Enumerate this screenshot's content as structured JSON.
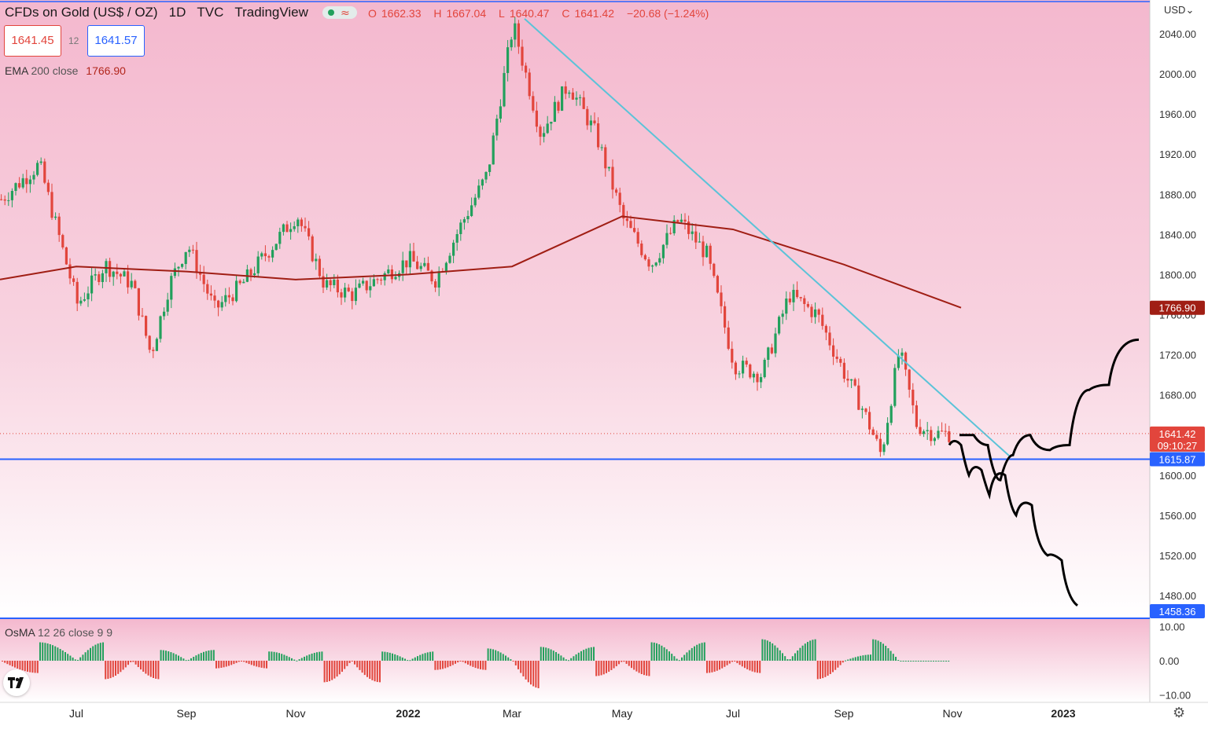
{
  "header": {
    "title": "CFDs on Gold (US$ / OZ)",
    "interval": "1D",
    "source": "TVC",
    "platform": "TradingView",
    "ohlc": {
      "open_label": "O",
      "open": "1662.33",
      "high_label": "H",
      "high": "1667.04",
      "low_label": "L",
      "low": "1640.47",
      "close_label": "C",
      "close": "1641.42",
      "change": "−20.68 (−1.24%)"
    }
  },
  "quote": {
    "sell": "1641.45",
    "spread": "12",
    "buy": "1641.57"
  },
  "indicators": {
    "ema": {
      "name": "EMA",
      "params": "200 close",
      "value": "1766.90"
    },
    "osma": {
      "name": "OsMA",
      "params": "12 26 close 9 9"
    }
  },
  "axis_currency": "USD",
  "colors": {
    "up": "#22a05c",
    "down": "#e2453c",
    "ema": "#a01e14",
    "trendline": "#5bc3d8",
    "support": "#2962ff",
    "projection": "#000000",
    "background_top": "#f4b8ce",
    "background_bottom": "#ffffff"
  },
  "badges": {
    "ema": "1766.90",
    "last_price": "1641.42",
    "countdown": "09:10:27",
    "support": "1615.87",
    "bottom_line": "1458.36"
  },
  "chart_data": [
    {
      "type": "candlestick",
      "title": "CFDs on Gold (US$ / OZ)",
      "xlabel": "",
      "ylabel": "",
      "y_ticks": [
        "2040.00",
        "2000.00",
        "1960.00",
        "1920.00",
        "1880.00",
        "1840.00",
        "1800.00",
        "1760.00",
        "1720.00",
        "1680.00",
        "1600.00",
        "1560.00",
        "1520.00",
        "1480.00"
      ],
      "x_ticks": [
        "Jul",
        "Sep",
        "Nov",
        "2022",
        "Mar",
        "May",
        "Jul",
        "Sep",
        "Nov",
        "2023"
      ],
      "ylim": [
        1455,
        2055
      ],
      "x_dates": [
        "Jun 2021",
        "Jul",
        "Aug",
        "Sep",
        "Oct",
        "Nov",
        "Dec",
        "2022",
        "Feb",
        "Mar",
        "Apr",
        "May",
        "Jun",
        "Jul",
        "Aug",
        "Sep",
        "Oct",
        "Nov",
        "Dec",
        "2023",
        "Jan 2023"
      ],
      "close_path": [
        {
          "date": "Jun 2021",
          "value": 1875
        },
        {
          "date": "Jun 2021",
          "value": 1910
        },
        {
          "date": "Jul",
          "value": 1770
        },
        {
          "date": "Jul",
          "value": 1810
        },
        {
          "date": "Aug",
          "value": 1790
        },
        {
          "date": "Aug",
          "value": 1720
        },
        {
          "date": "Aug",
          "value": 1790
        },
        {
          "date": "Sep",
          "value": 1830
        },
        {
          "date": "Sep",
          "value": 1765
        },
        {
          "date": "Oct",
          "value": 1790
        },
        {
          "date": "Nov",
          "value": 1860
        },
        {
          "date": "Nov",
          "value": 1790
        },
        {
          "date": "Dec",
          "value": 1780
        },
        {
          "date": "2022",
          "value": 1815
        },
        {
          "date": "2022",
          "value": 1795
        },
        {
          "date": "Feb",
          "value": 1850
        },
        {
          "date": "Feb",
          "value": 1900
        },
        {
          "date": "Mar",
          "value": 2050
        },
        {
          "date": "Mar",
          "value": 1940
        },
        {
          "date": "Apr",
          "value": 1990
        },
        {
          "date": "Apr",
          "value": 1940
        },
        {
          "date": "May",
          "value": 1855
        },
        {
          "date": "May",
          "value": 1810
        },
        {
          "date": "Jun",
          "value": 1855
        },
        {
          "date": "Jun",
          "value": 1820
        },
        {
          "date": "Jul",
          "value": 1710
        },
        {
          "date": "Jul",
          "value": 1700
        },
        {
          "date": "Aug",
          "value": 1780
        },
        {
          "date": "Aug",
          "value": 1760
        },
        {
          "date": "Sep",
          "value": 1700
        },
        {
          "date": "Sep",
          "value": 1665
        },
        {
          "date": "Sep",
          "value": 1620
        },
        {
          "date": "Oct",
          "value": 1725
        },
        {
          "date": "Oct",
          "value": 1650
        },
        {
          "date": "Oct",
          "value": 1641.42
        }
      ],
      "ema200": [
        {
          "date": "Jun 2021",
          "value": 1795
        },
        {
          "date": "Jul",
          "value": 1808
        },
        {
          "date": "Sep",
          "value": 1803
        },
        {
          "date": "Nov",
          "value": 1795
        },
        {
          "date": "2022",
          "value": 1800
        },
        {
          "date": "Mar",
          "value": 1808
        },
        {
          "date": "May",
          "value": 1858
        },
        {
          "date": "Jul",
          "value": 1845
        },
        {
          "date": "Sep",
          "value": 1810
        },
        {
          "date": "Nov",
          "value": 1766.9
        }
      ],
      "trendline": [
        {
          "date": "Mar",
          "value": 2055
        },
        {
          "date": "Nov",
          "value": 1618
        }
      ],
      "horizontal_lines": [
        {
          "value": 1615.87
        },
        {
          "value": 1458.36
        },
        {
          "value": 1641.42
        }
      ],
      "projection_bearish": [
        1630,
        1600,
        1605,
        1580,
        1600,
        1560,
        1570,
        1520,
        1515,
        1470
      ],
      "projection_bullish": [
        1640,
        1630,
        1595,
        1620,
        1640,
        1625,
        1630,
        1685,
        1690,
        1735
      ]
    },
    {
      "type": "bar",
      "title": "OsMA",
      "y_ticks": [
        "10.00",
        "0.00",
        "−10.00"
      ],
      "ylim": [
        -10,
        10
      ],
      "values_outline": [
        {
          "date": "Jun 2021",
          "value": -4
        },
        {
          "date": "Jul",
          "value": 6
        },
        {
          "date": "Aug",
          "value": -6
        },
        {
          "date": "Sep",
          "value": 3.5
        },
        {
          "date": "Oct",
          "value": -2.5
        },
        {
          "date": "Nov",
          "value": 3
        },
        {
          "date": "Dec",
          "value": -7
        },
        {
          "date": "2022",
          "value": 3
        },
        {
          "date": "Feb",
          "value": -3
        },
        {
          "date": "Mar",
          "value": 4
        },
        {
          "date": "Mar",
          "value": -9
        },
        {
          "date": "Apr",
          "value": 4.5
        },
        {
          "date": "May",
          "value": -5
        },
        {
          "date": "Jun",
          "value": 6
        },
        {
          "date": "Jul",
          "value": -4
        },
        {
          "date": "Aug",
          "value": 7
        },
        {
          "date": "Sep",
          "value": -6
        },
        {
          "date": "Sep",
          "value": 2
        },
        {
          "date": "Oct",
          "value": 7
        },
        {
          "date": "Oct",
          "value": -4
        },
        {
          "date": "Oct",
          "value": 1.5
        }
      ]
    }
  ]
}
